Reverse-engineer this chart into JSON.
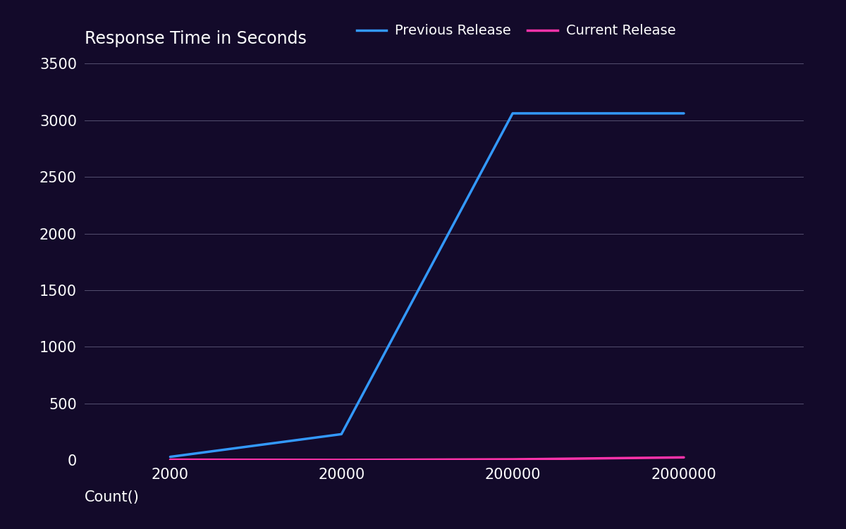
{
  "background_color": "#130a2a",
  "plot_bg_color": "#130a2a",
  "grid_color": "#aaaacc",
  "title": "Response Time in Seconds",
  "xlabel": "Count()",
  "title_color": "#ffffff",
  "xlabel_color": "#ffffff",
  "tick_color": "#ffffff",
  "x_tick_labels": [
    "2000",
    "20000",
    "200000",
    "2000000"
  ],
  "previous_release": [
    30,
    230,
    3060,
    3060
  ],
  "current_release": [
    5,
    3,
    8,
    25
  ],
  "previous_color": "#3399ff",
  "current_color": "#ff33aa",
  "ylim": [
    0,
    3500
  ],
  "yticks": [
    0,
    500,
    1000,
    1500,
    2000,
    2500,
    3000,
    3500
  ],
  "legend_previous": "Previous Release",
  "legend_current": "Current Release",
  "line_width": 2.5,
  "title_fontsize": 17,
  "tick_fontsize": 15,
  "label_fontsize": 15,
  "legend_fontsize": 14
}
